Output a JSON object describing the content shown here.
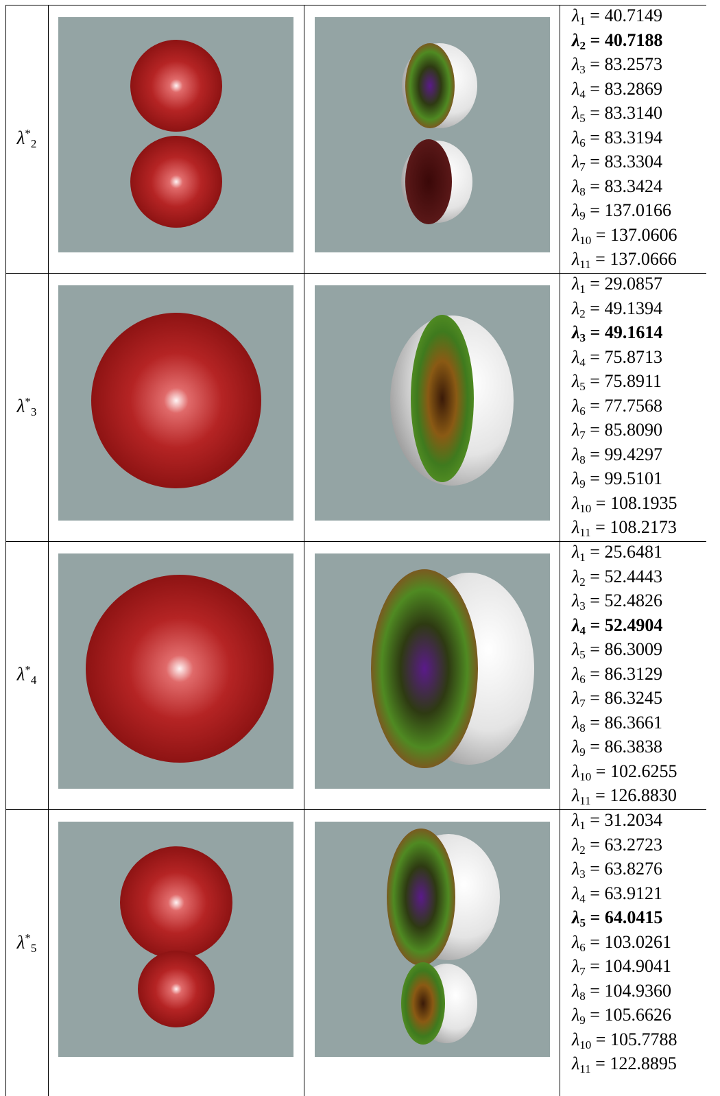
{
  "symbol": "λ",
  "equals": "=",
  "star": "*",
  "rows": [
    {
      "label_sub": "2",
      "highlight": 1,
      "eigenvalues": [
        {
          "sub": "1",
          "value": "40.7149"
        },
        {
          "sub": "2",
          "value": "40.7188"
        },
        {
          "sub": "3",
          "value": "83.2573"
        },
        {
          "sub": "4",
          "value": "83.2869"
        },
        {
          "sub": "5",
          "value": "83.3140"
        },
        {
          "sub": "6",
          "value": "83.3194"
        },
        {
          "sub": "7",
          "value": "83.3304"
        },
        {
          "sub": "8",
          "value": "83.3424"
        },
        {
          "sub": "9",
          "value": "137.0166"
        },
        {
          "sub": "10",
          "value": "137.0606"
        },
        {
          "sub": "11",
          "value": "137.0666"
        }
      ]
    },
    {
      "label_sub": "3",
      "highlight": 2,
      "eigenvalues": [
        {
          "sub": "1",
          "value": "29.0857"
        },
        {
          "sub": "2",
          "value": "49.1394"
        },
        {
          "sub": "3",
          "value": "49.1614"
        },
        {
          "sub": "4",
          "value": "75.8713"
        },
        {
          "sub": "5",
          "value": "75.8911"
        },
        {
          "sub": "6",
          "value": "77.7568"
        },
        {
          "sub": "7",
          "value": "85.8090"
        },
        {
          "sub": "8",
          "value": "99.4297"
        },
        {
          "sub": "9",
          "value": "99.5101"
        },
        {
          "sub": "10",
          "value": "108.1935"
        },
        {
          "sub": "11",
          "value": "108.2173"
        }
      ]
    },
    {
      "label_sub": "4",
      "highlight": 3,
      "eigenvalues": [
        {
          "sub": "1",
          "value": "25.6481"
        },
        {
          "sub": "2",
          "value": "52.4443"
        },
        {
          "sub": "3",
          "value": "52.4826"
        },
        {
          "sub": "4",
          "value": "52.4904"
        },
        {
          "sub": "5",
          "value": "86.3009"
        },
        {
          "sub": "6",
          "value": "86.3129"
        },
        {
          "sub": "7",
          "value": "86.3245"
        },
        {
          "sub": "8",
          "value": "86.3661"
        },
        {
          "sub": "9",
          "value": "86.3838"
        },
        {
          "sub": "10",
          "value": "102.6255"
        },
        {
          "sub": "11",
          "value": "126.8830"
        }
      ]
    },
    {
      "label_sub": "5",
      "highlight": 4,
      "eigenvalues": [
        {
          "sub": "1",
          "value": "31.2034"
        },
        {
          "sub": "2",
          "value": "63.2723"
        },
        {
          "sub": "3",
          "value": "63.8276"
        },
        {
          "sub": "4",
          "value": "63.9121"
        },
        {
          "sub": "5",
          "value": "64.0415"
        },
        {
          "sub": "6",
          "value": "103.0261"
        },
        {
          "sub": "7",
          "value": "104.9041"
        },
        {
          "sub": "8",
          "value": "104.9360"
        },
        {
          "sub": "9",
          "value": "105.6626"
        },
        {
          "sub": "10",
          "value": "105.7788"
        },
        {
          "sub": "11",
          "value": "122.8895"
        }
      ]
    }
  ]
}
